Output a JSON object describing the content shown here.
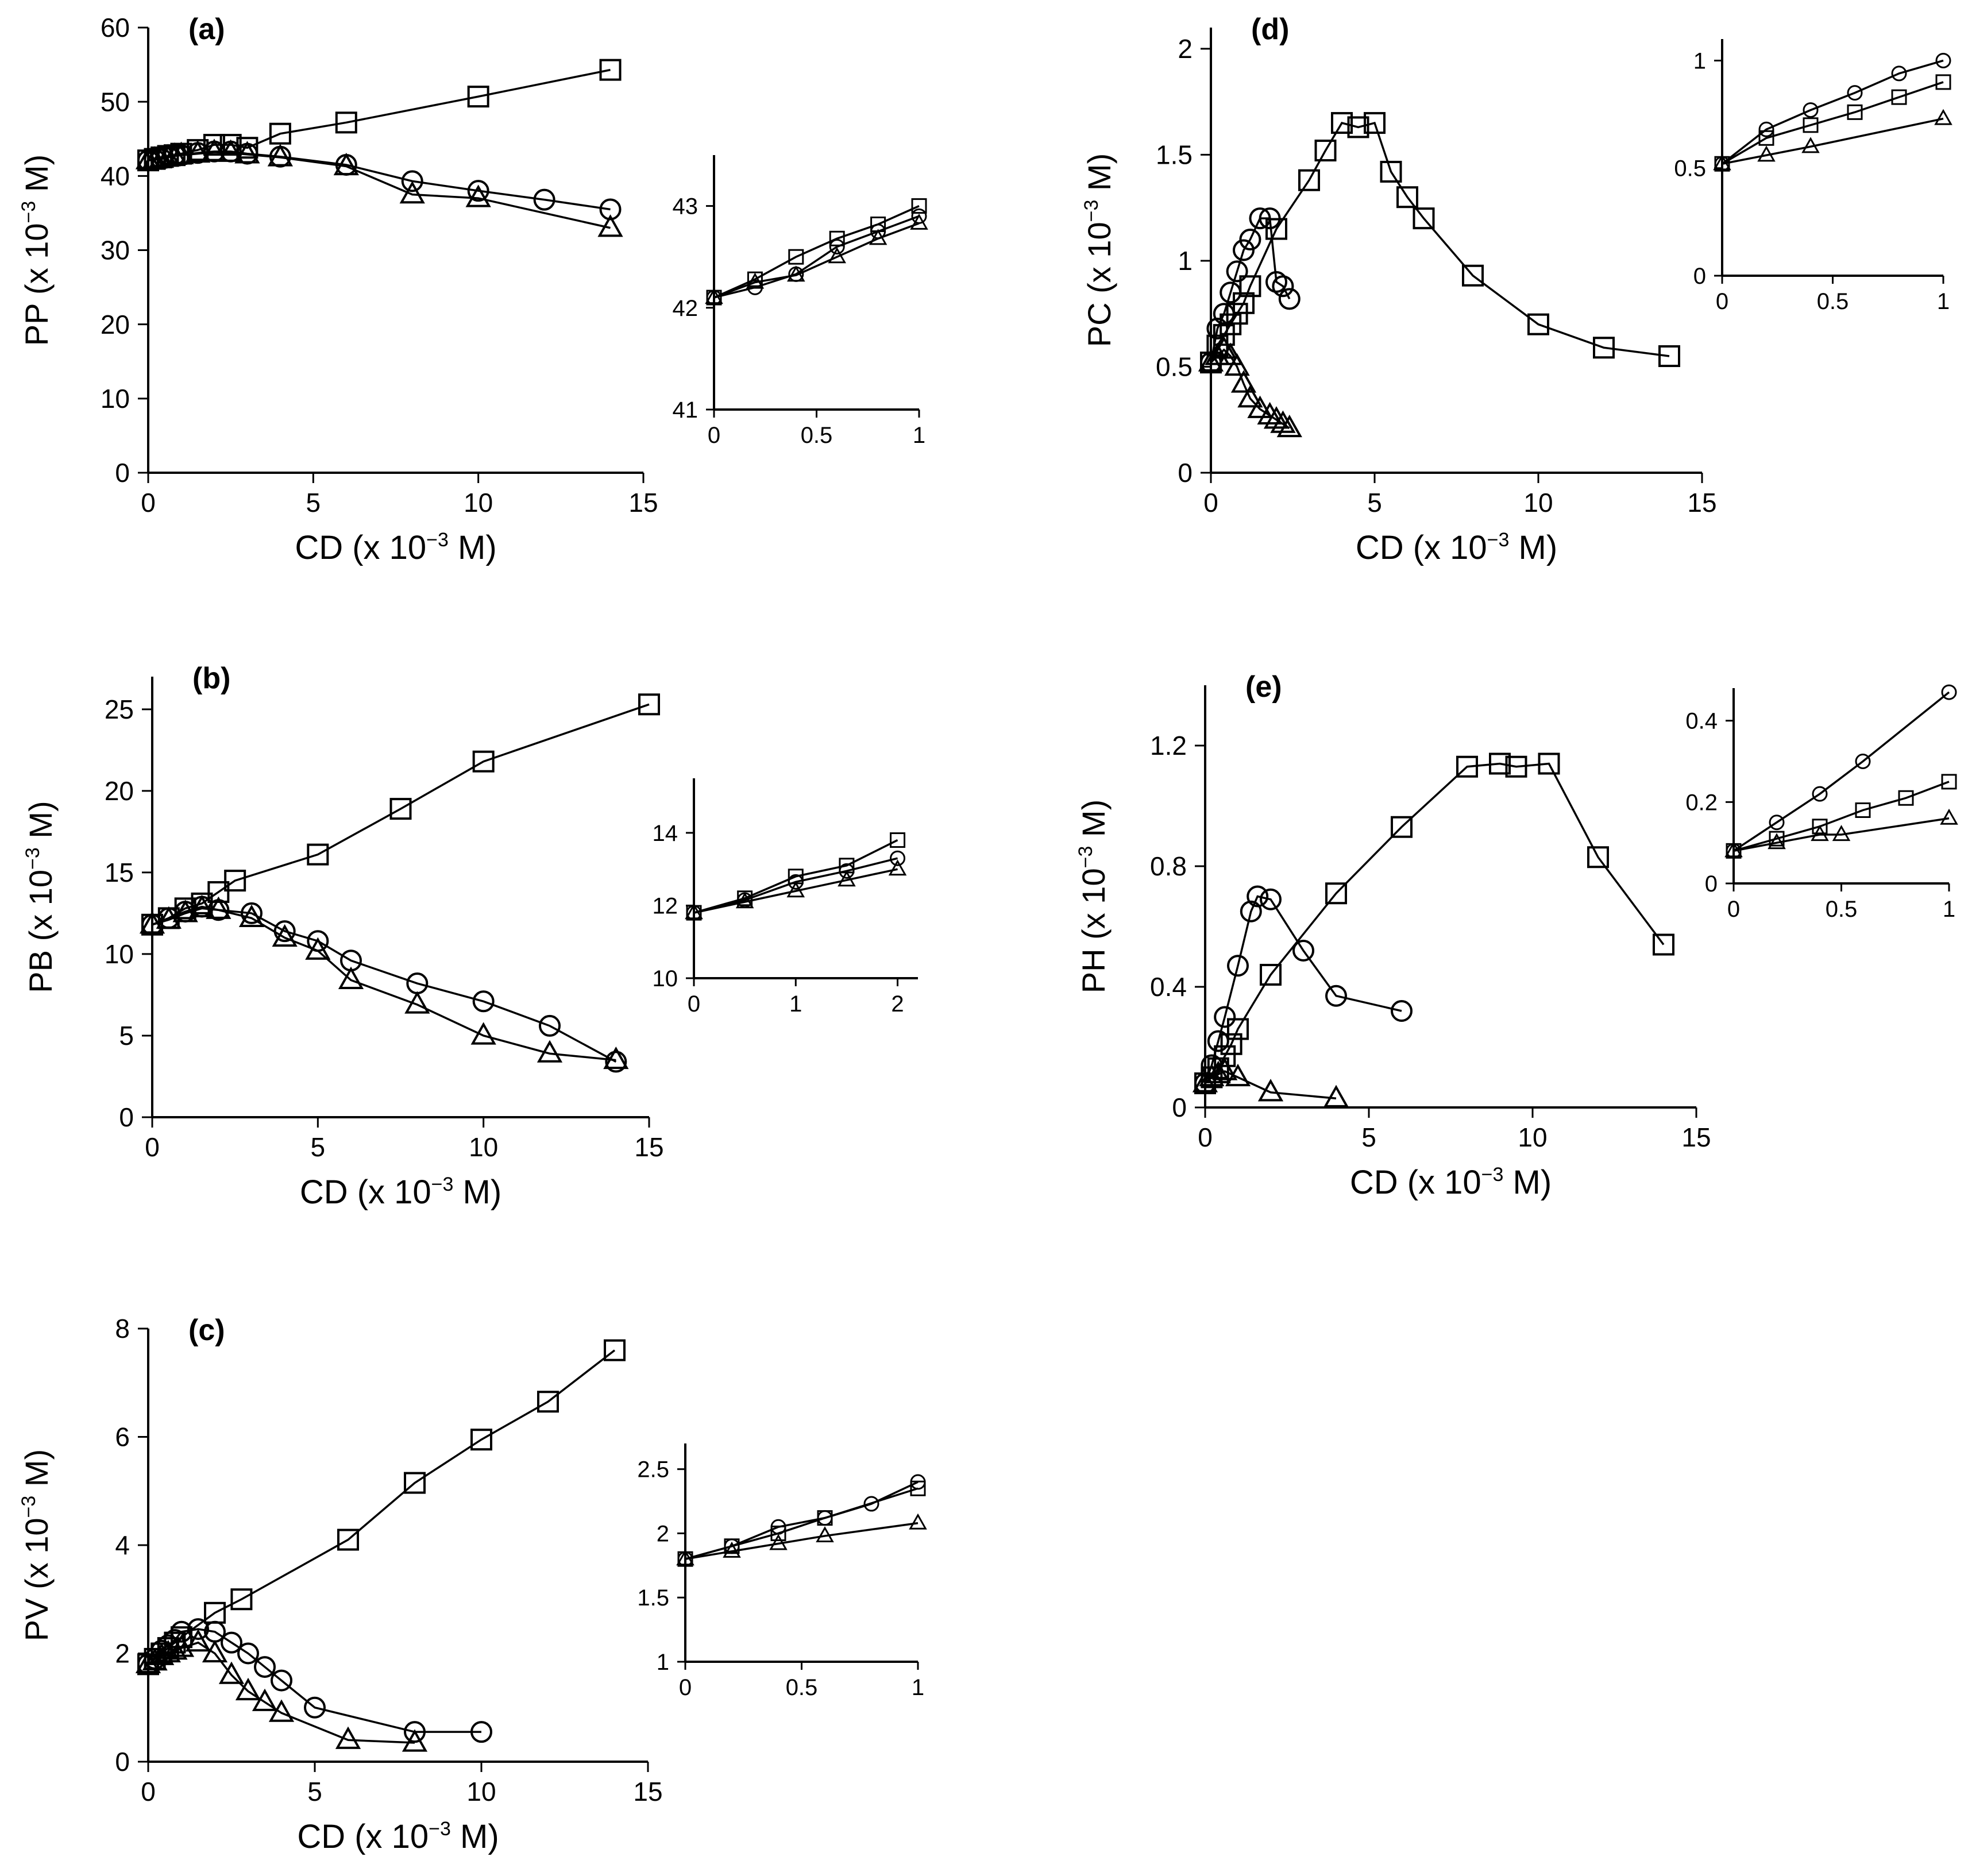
{
  "chart_data": [
    {
      "id": "a",
      "type": "line",
      "panel_label": "(a)",
      "ylabel": "PP (x 10",
      "ylabel_sup": "−3",
      "ylabel_end": " M)",
      "xlabel": "CD (x 10",
      "xlabel_sup": "−3",
      "xlabel_end": " M)",
      "xlim": [
        0,
        15
      ],
      "ylim": [
        0,
        60
      ],
      "xticks": [
        "0",
        "5",
        "10",
        "15"
      ],
      "yticks": [
        "0",
        "10",
        "20",
        "30",
        "40",
        "50",
        "60"
      ],
      "series": [
        {
          "name": "square",
          "marker": "square",
          "x": [
            0,
            0.2,
            0.4,
            0.6,
            0.8,
            1,
            1.5,
            2,
            2.5,
            3,
            4,
            6,
            10,
            14
          ],
          "y": [
            42.1,
            42.3,
            42.5,
            42.7,
            42.8,
            43,
            43.5,
            44.2,
            44.2,
            43.8,
            45.7,
            47.2,
            50.7,
            54.3
          ]
        },
        {
          "name": "circle",
          "marker": "circle",
          "x": [
            0,
            0.2,
            0.4,
            0.6,
            0.8,
            1,
            1.5,
            2,
            2.5,
            3,
            4,
            6,
            8,
            10,
            12,
            14
          ],
          "y": [
            42.1,
            42.2,
            42.3,
            42.6,
            42.8,
            42.8,
            43.1,
            43.3,
            43.3,
            43,
            42.6,
            41.5,
            39.3,
            38,
            36.8,
            35.5
          ]
        },
        {
          "name": "triangle",
          "marker": "triangle",
          "x": [
            0,
            0.2,
            0.4,
            0.6,
            0.8,
            1,
            1.5,
            2,
            2.5,
            3,
            4,
            6,
            8,
            10,
            14
          ],
          "y": [
            42.1,
            42.2,
            42.3,
            42.5,
            42.7,
            42.8,
            43,
            43.2,
            43.1,
            42.9,
            42.5,
            41.3,
            37.5,
            37,
            33
          ]
        }
      ],
      "inset": {
        "xlim": [
          0,
          1
        ],
        "ylim": [
          41,
          43.5
        ],
        "xticks": [
          "0",
          "0.5",
          "1"
        ],
        "yticks": [
          "41",
          "42",
          "43"
        ],
        "series": [
          {
            "name": "square",
            "marker": "square",
            "x": [
              0,
              0.2,
              0.4,
              0.6,
              0.8,
              1
            ],
            "y": [
              42.1,
              42.28,
              42.5,
              42.68,
              42.82,
              43
            ]
          },
          {
            "name": "circle",
            "marker": "circle",
            "x": [
              0,
              0.2,
              0.4,
              0.6,
              0.8,
              1
            ],
            "y": [
              42.1,
              42.2,
              42.33,
              42.6,
              42.75,
              42.9
            ]
          },
          {
            "name": "triangle",
            "marker": "triangle",
            "x": [
              0,
              0.2,
              0.4,
              0.6,
              0.8,
              1
            ],
            "y": [
              42.1,
              42.25,
              42.32,
              42.5,
              42.68,
              42.83
            ]
          }
        ]
      }
    },
    {
      "id": "b",
      "type": "line",
      "panel_label": "(b)",
      "ylabel": "PB (x 10",
      "ylabel_sup": "−3",
      "ylabel_end": " M)",
      "xlabel": "CD (x 10",
      "xlabel_sup": "−3",
      "xlabel_end": " M)",
      "xlim": [
        0,
        15
      ],
      "ylim": [
        0,
        27
      ],
      "xticks": [
        "0",
        "5",
        "10",
        "15"
      ],
      "yticks": [
        "0",
        "5",
        "10",
        "15",
        "20",
        "25"
      ],
      "series": [
        {
          "name": "square",
          "marker": "square",
          "x": [
            0,
            0.5,
            1,
            1.5,
            2,
            2.5,
            5,
            7.5,
            10,
            15
          ],
          "y": [
            11.8,
            12.2,
            12.8,
            13.1,
            13.8,
            14.5,
            16.1,
            18.9,
            21.8,
            25.3
          ]
        },
        {
          "name": "circle",
          "marker": "circle",
          "x": [
            0,
            0.5,
            1,
            1.5,
            2,
            3,
            4,
            5,
            6,
            8,
            10,
            12,
            14
          ],
          "y": [
            11.8,
            12.2,
            12.6,
            12.9,
            12.7,
            12.5,
            11.4,
            10.8,
            9.6,
            8.2,
            7.1,
            5.6,
            3.4
          ]
        },
        {
          "name": "triangle",
          "marker": "triangle",
          "x": [
            0,
            0.5,
            1,
            1.5,
            2,
            3,
            4,
            5,
            6,
            8,
            10,
            12,
            14
          ],
          "y": [
            11.8,
            12.1,
            12.5,
            12.8,
            12.7,
            12.2,
            11,
            10.2,
            8.4,
            6.9,
            5,
            3.9,
            3.5
          ]
        }
      ],
      "inset": {
        "xlim": [
          0,
          2.2
        ],
        "ylim": [
          10,
          15.5
        ],
        "xticks": [
          "0",
          "1",
          "2"
        ],
        "yticks": [
          "10",
          "12",
          "14"
        ],
        "series": [
          {
            "name": "square",
            "marker": "square",
            "x": [
              0,
              0.5,
              1,
              1.5,
              2
            ],
            "y": [
              11.8,
              12.2,
              12.8,
              13.1,
              13.8
            ]
          },
          {
            "name": "circle",
            "marker": "circle",
            "x": [
              0,
              0.5,
              1,
              1.5,
              2
            ],
            "y": [
              11.8,
              12.15,
              12.65,
              12.95,
              13.3
            ]
          },
          {
            "name": "triangle",
            "marker": "triangle",
            "x": [
              0,
              0.5,
              1,
              1.5,
              2
            ],
            "y": [
              11.8,
              12.1,
              12.4,
              12.7,
              13
            ]
          }
        ]
      }
    },
    {
      "id": "c",
      "type": "line",
      "panel_label": "(c)",
      "ylabel": "PV (x 10",
      "ylabel_sup": "−3",
      "ylabel_end": " M)",
      "xlabel": "CD (x 10",
      "xlabel_sup": "−3",
      "xlabel_end": " M)",
      "xlim": [
        0,
        15
      ],
      "ylim": [
        0,
        8
      ],
      "xticks": [
        "0",
        "5",
        "10",
        "15"
      ],
      "yticks": [
        "0",
        "2",
        "4",
        "6",
        "8"
      ],
      "series": [
        {
          "name": "square",
          "marker": "square",
          "x": [
            0,
            0.2,
            0.4,
            0.6,
            0.8,
            1,
            2,
            2.8,
            6,
            8,
            10,
            12,
            14
          ],
          "y": [
            1.8,
            1.9,
            2,
            2.1,
            2.2,
            2.3,
            2.75,
            3,
            4.1,
            5.15,
            5.95,
            6.65,
            7.6
          ]
        },
        {
          "name": "circle",
          "marker": "circle",
          "x": [
            0,
            0.2,
            0.4,
            0.6,
            0.8,
            1,
            1.5,
            2,
            2.5,
            3,
            3.5,
            4,
            5,
            8,
            10
          ],
          "y": [
            1.8,
            1.9,
            2.05,
            2.15,
            2.25,
            2.4,
            2.45,
            2.4,
            2.2,
            2,
            1.75,
            1.5,
            1,
            0.55,
            0.55
          ]
        },
        {
          "name": "triangle",
          "marker": "triangle",
          "x": [
            0,
            0.2,
            0.4,
            0.6,
            0.8,
            1,
            1.5,
            2,
            2.5,
            3,
            3.5,
            4,
            6,
            8
          ],
          "y": [
            1.8,
            1.85,
            1.95,
            2,
            2.05,
            2.1,
            2.2,
            2,
            1.6,
            1.3,
            1.1,
            0.9,
            0.4,
            0.35
          ]
        }
      ],
      "inset": {
        "xlim": [
          0,
          1
        ],
        "ylim": [
          1,
          2.7
        ],
        "xticks": [
          "0",
          "0.5",
          "1"
        ],
        "yticks": [
          "1",
          "1.5",
          "2",
          "2.5"
        ],
        "series": [
          {
            "name": "square",
            "marker": "square",
            "x": [
              0,
              0.2,
              0.4,
              0.6,
              1
            ],
            "y": [
              1.8,
              1.9,
              2,
              2.12,
              2.35
            ]
          },
          {
            "name": "circle",
            "marker": "circle",
            "x": [
              0,
              0.2,
              0.4,
              0.6,
              0.8,
              1
            ],
            "y": [
              1.8,
              1.9,
              2.05,
              2.12,
              2.23,
              2.4
            ]
          },
          {
            "name": "triangle",
            "marker": "triangle",
            "x": [
              0,
              0.2,
              0.4,
              0.6,
              1
            ],
            "y": [
              1.8,
              1.86,
              1.92,
              1.98,
              2.08
            ]
          }
        ]
      }
    },
    {
      "id": "d",
      "type": "line",
      "panel_label": "(d)",
      "ylabel": "PC (x 10",
      "ylabel_sup": "−3",
      "ylabel_end": " M)",
      "xlabel": "CD (x 10",
      "xlabel_sup": "−3",
      "xlabel_end": " M)",
      "xlim": [
        0,
        15
      ],
      "ylim": [
        0,
        2.1
      ],
      "xticks": [
        "0",
        "5",
        "10",
        "15"
      ],
      "yticks": [
        "0",
        "0.5",
        "1",
        "1.5",
        "2"
      ],
      "series": [
        {
          "name": "square",
          "marker": "square",
          "x": [
            0,
            0.2,
            0.4,
            0.6,
            0.8,
            1,
            1.2,
            2,
            3,
            3.5,
            4,
            4.5,
            5,
            5.5,
            6,
            6.5,
            8,
            10,
            12,
            14
          ],
          "y": [
            0.52,
            0.6,
            0.65,
            0.7,
            0.75,
            0.8,
            0.88,
            1.15,
            1.38,
            1.52,
            1.65,
            1.63,
            1.65,
            1.42,
            1.3,
            1.2,
            0.93,
            0.7,
            0.59,
            0.55
          ]
        },
        {
          "name": "circle",
          "marker": "circle",
          "x": [
            0,
            0.2,
            0.4,
            0.6,
            0.8,
            1,
            1.2,
            1.5,
            1.8,
            2,
            2.2,
            2.4
          ],
          "y": [
            0.52,
            0.68,
            0.75,
            0.85,
            0.95,
            1.05,
            1.1,
            1.2,
            1.2,
            0.9,
            0.88,
            0.82
          ]
        },
        {
          "name": "triangle",
          "marker": "triangle",
          "x": [
            0,
            0.2,
            0.4,
            0.6,
            0.8,
            1,
            1.2,
            1.5,
            1.8,
            2,
            2.2,
            2.4
          ],
          "y": [
            0.52,
            0.55,
            0.58,
            0.55,
            0.5,
            0.42,
            0.35,
            0.3,
            0.27,
            0.25,
            0.23,
            0.21
          ]
        }
      ],
      "inset": {
        "xlim": [
          0,
          1
        ],
        "ylim": [
          0,
          1.1
        ],
        "xticks": [
          "0",
          "0.5",
          "1"
        ],
        "yticks": [
          "0",
          "0.5",
          "1"
        ],
        "series": [
          {
            "name": "square",
            "marker": "square",
            "x": [
              0,
              0.2,
              0.4,
              0.6,
              0.8,
              1
            ],
            "y": [
              0.52,
              0.64,
              0.7,
              0.76,
              0.83,
              0.9
            ]
          },
          {
            "name": "circle",
            "marker": "circle",
            "x": [
              0,
              0.2,
              0.4,
              0.6,
              0.8,
              1
            ],
            "y": [
              0.52,
              0.68,
              0.77,
              0.85,
              0.94,
              1
            ]
          },
          {
            "name": "triangle",
            "marker": "triangle",
            "x": [
              0,
              0.2,
              0.4,
              1
            ],
            "y": [
              0.52,
              0.56,
              0.6,
              0.73
            ]
          }
        ]
      }
    },
    {
      "id": "e",
      "type": "line",
      "panel_label": "(e)",
      "ylabel": "PH (x 10",
      "ylabel_sup": "−3",
      "ylabel_end": " M)",
      "xlabel": "CD (x 10",
      "xlabel_sup": "−3",
      "xlabel_end": " M)",
      "xlim": [
        0,
        15
      ],
      "ylim": [
        0,
        1.4
      ],
      "xticks": [
        "0",
        "5",
        "10",
        "15"
      ],
      "yticks": [
        "0",
        "0.4",
        "0.8",
        "1.2"
      ],
      "series": [
        {
          "name": "square",
          "marker": "square",
          "x": [
            0,
            0.2,
            0.4,
            0.6,
            0.8,
            1,
            2,
            4,
            6,
            8,
            9,
            9.5,
            10.5,
            12,
            14
          ],
          "y": [
            0.08,
            0.1,
            0.13,
            0.17,
            0.21,
            0.26,
            0.44,
            0.71,
            0.93,
            1.13,
            1.14,
            1.13,
            1.14,
            0.83,
            0.54
          ]
        },
        {
          "name": "circle",
          "marker": "circle",
          "x": [
            0,
            0.2,
            0.4,
            0.6,
            1,
            1.4,
            1.6,
            2,
            3,
            4,
            6
          ],
          "y": [
            0.08,
            0.14,
            0.22,
            0.3,
            0.47,
            0.65,
            0.7,
            0.69,
            0.52,
            0.37,
            0.32
          ]
        },
        {
          "name": "triangle",
          "marker": "triangle",
          "x": [
            0,
            0.2,
            0.4,
            0.6,
            1,
            2,
            4
          ],
          "y": [
            0.08,
            0.1,
            0.11,
            0.12,
            0.1,
            0.05,
            0.03
          ]
        }
      ],
      "inset": {
        "xlim": [
          0,
          1
        ],
        "ylim": [
          0,
          0.48
        ],
        "xticks": [
          "0",
          "0.5",
          "1"
        ],
        "yticks": [
          "0",
          "0.2",
          "0.4"
        ],
        "series": [
          {
            "name": "square",
            "marker": "square",
            "x": [
              0,
              0.2,
              0.4,
              0.6,
              0.8,
              1
            ],
            "y": [
              0.08,
              0.11,
              0.14,
              0.18,
              0.21,
              0.25
            ]
          },
          {
            "name": "circle",
            "marker": "circle",
            "x": [
              0,
              0.2,
              0.4,
              0.6,
              1
            ],
            "y": [
              0.08,
              0.15,
              0.22,
              0.3,
              0.47
            ]
          },
          {
            "name": "triangle",
            "marker": "triangle",
            "x": [
              0,
              0.2,
              0.4,
              0.5,
              1
            ],
            "y": [
              0.08,
              0.1,
              0.12,
              0.12,
              0.16
            ]
          }
        ]
      }
    }
  ]
}
